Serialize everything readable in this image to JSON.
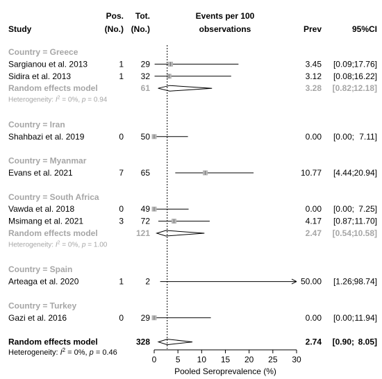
{
  "header": {
    "study": "Study",
    "pos_line1": "Pos.",
    "pos_line2": "(No.)",
    "tot_line1": "Tot.",
    "tot_line2": "(No.)",
    "events_line1": "Events per 100",
    "events_line2": "observations",
    "prev": "Prev",
    "ci": "95%CI"
  },
  "colors": {
    "text": "#000000",
    "subgroup_gray": "#a6a6a6",
    "box_gray": "#b5b5b5"
  },
  "chart_data": {
    "type": "forest",
    "xlabel": "Pooled Seroprevalence (%)",
    "xlim": [
      0,
      30
    ],
    "xticks": [
      "0",
      "5",
      "10",
      "15",
      "20",
      "25",
      "30"
    ],
    "reference_line": 2.74,
    "rows": [
      {
        "kind": "group",
        "label": "Country = Greece"
      },
      {
        "kind": "study",
        "study": "Sargianou et al. 2013",
        "pos": "1",
        "tot": "29",
        "prev": 3.45,
        "lo": 0.09,
        "hi": 17.76,
        "prev_text": "3.45",
        "ci_lo_text": "[0.09;",
        "ci_hi_text": "17.76]"
      },
      {
        "kind": "study",
        "study": "Sidira et al. 2013",
        "pos": "1",
        "tot": "32",
        "prev": 3.12,
        "lo": 0.08,
        "hi": 16.22,
        "prev_text": "3.12",
        "ci_lo_text": "[0.08;",
        "ci_hi_text": "16.22]"
      },
      {
        "kind": "subtotal",
        "study": "Random effects model",
        "tot": "61",
        "prev": 3.28,
        "lo": 0.82,
        "hi": 12.18,
        "prev_text": "3.28",
        "ci_lo_text": "[0.82;",
        "ci_hi_text": "12.18]"
      },
      {
        "kind": "het",
        "text": "Heterogeneity: I² = 0%, p = 0.94"
      },
      {
        "kind": "spacer"
      },
      {
        "kind": "group",
        "label": "Country = Iran"
      },
      {
        "kind": "study",
        "study": "Shahbazi et al. 2019",
        "pos": "0",
        "tot": "50",
        "prev": 0.0,
        "lo": 0.0,
        "hi": 7.11,
        "prev_text": "0.00",
        "ci_lo_text": "[0.00;",
        "ci_hi_text": "7.11]"
      },
      {
        "kind": "spacer"
      },
      {
        "kind": "group",
        "label": "Country = Myanmar"
      },
      {
        "kind": "study",
        "study": "Evans et al. 2021",
        "pos": "7",
        "tot": "65",
        "prev": 10.77,
        "lo": 4.44,
        "hi": 20.94,
        "prev_text": "10.77",
        "ci_lo_text": "[4.44;",
        "ci_hi_text": "20.94]"
      },
      {
        "kind": "spacer"
      },
      {
        "kind": "group",
        "label": "Country = South Africa"
      },
      {
        "kind": "study",
        "study": "Vawda et al. 2018",
        "pos": "0",
        "tot": "49",
        "prev": 0.0,
        "lo": 0.0,
        "hi": 7.25,
        "prev_text": "0.00",
        "ci_lo_text": "[0.00;",
        "ci_hi_text": "7.25]"
      },
      {
        "kind": "study",
        "study": "Msimang et al. 2021",
        "pos": "3",
        "tot": "72",
        "prev": 4.17,
        "lo": 0.87,
        "hi": 11.7,
        "prev_text": "4.17",
        "ci_lo_text": "[0.87;",
        "ci_hi_text": "11.70]"
      },
      {
        "kind": "subtotal",
        "study": "Random effects model",
        "tot": "121",
        "prev": 2.47,
        "lo": 0.54,
        "hi": 10.58,
        "prev_text": "2.47",
        "ci_lo_text": "[0.54;",
        "ci_hi_text": "10.58]"
      },
      {
        "kind": "het",
        "text": "Heterogeneity: I² = 0%, p = 1.00"
      },
      {
        "kind": "spacer"
      },
      {
        "kind": "group",
        "label": "Country = Spain"
      },
      {
        "kind": "study",
        "study": "Arteaga et al. 2020",
        "pos": "1",
        "tot": "2",
        "prev": 50.0,
        "lo": 1.26,
        "hi": 98.74,
        "prev_text": "50.00",
        "ci_lo_text": "[1.26;",
        "ci_hi_text": "98.74]",
        "arrow": true
      },
      {
        "kind": "spacer"
      },
      {
        "kind": "group",
        "label": "Country = Turkey"
      },
      {
        "kind": "study",
        "study": "Gazi et al. 2016",
        "pos": "0",
        "tot": "29",
        "prev": 0.0,
        "lo": 0.0,
        "hi": 11.94,
        "prev_text": "0.00",
        "ci_lo_text": "[0.00;",
        "ci_hi_text": "11.94]"
      },
      {
        "kind": "spacer"
      },
      {
        "kind": "overall",
        "study": "Random effects model",
        "tot": "328",
        "prev": 2.74,
        "lo": 0.9,
        "hi": 8.05,
        "prev_text": "2.74",
        "ci_lo_text": "[0.90;",
        "ci_hi_text": "8.05]"
      },
      {
        "kind": "het_overall",
        "text": "Heterogeneity: I² = 0%, p = 0.46"
      }
    ]
  }
}
